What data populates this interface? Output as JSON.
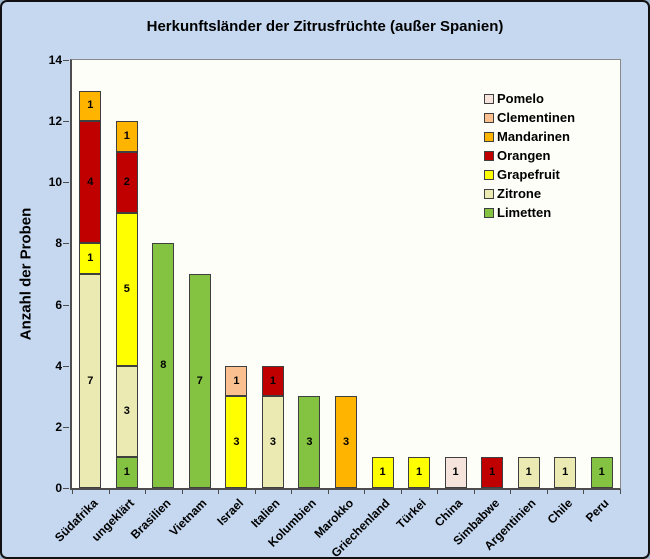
{
  "window": {
    "background_color": "#C5D8F0",
    "plot_background_color": "#FDFEF7",
    "border_color": "#111111"
  },
  "chart_data": {
    "type": "bar",
    "stacked": true,
    "title": "Herkunftsländer der Zitrusfrüchte (außer Spanien)",
    "ylabel": "Anzahl der Proben",
    "xlabel": "",
    "ylim": [
      0,
      14
    ],
    "ytick_step": 2,
    "grid": false,
    "legend_position": "upper-right-inside",
    "legend_order": "top-of-list = top-of-stack",
    "categories": [
      "Südafrika",
      "ungeklärt",
      "Brasilien",
      "Vietnam",
      "Israel",
      "Italien",
      "Kolumbien",
      "Marokko",
      "Griechenland",
      "Türkei",
      "China",
      "Simbabwe",
      "Argentinien",
      "Chile",
      "Peru"
    ],
    "series": [
      {
        "name": "Pomelo",
        "color": "#F6E3DB",
        "values": [
          0,
          0,
          0,
          0,
          0,
          0,
          0,
          0,
          0,
          0,
          1,
          0,
          0,
          0,
          0
        ]
      },
      {
        "name": "Clementinen",
        "color": "#FAC090",
        "values": [
          0,
          0,
          0,
          0,
          1,
          0,
          0,
          0,
          0,
          0,
          0,
          0,
          0,
          0,
          0
        ]
      },
      {
        "name": "Mandarinen",
        "color": "#FFB400",
        "values": [
          1,
          1,
          0,
          0,
          0,
          0,
          0,
          3,
          0,
          0,
          0,
          0,
          0,
          0,
          0
        ]
      },
      {
        "name": "Orangen",
        "color": "#C00000",
        "values": [
          4,
          2,
          0,
          0,
          0,
          1,
          0,
          0,
          0,
          0,
          0,
          1,
          0,
          0,
          0
        ]
      },
      {
        "name": "Grapefruit",
        "color": "#FFFF00",
        "values": [
          1,
          5,
          0,
          0,
          3,
          0,
          0,
          0,
          1,
          1,
          0,
          0,
          0,
          0,
          0
        ]
      },
      {
        "name": "Zitrone",
        "color": "#EAEAB2",
        "values": [
          7,
          3,
          0,
          0,
          0,
          3,
          0,
          0,
          0,
          0,
          0,
          0,
          1,
          1,
          0
        ]
      },
      {
        "name": "Limetten",
        "color": "#84C342",
        "values": [
          0,
          1,
          8,
          7,
          0,
          0,
          3,
          0,
          0,
          0,
          0,
          0,
          0,
          0,
          1
        ]
      }
    ],
    "bar_totals": [
      13,
      12,
      8,
      7,
      4,
      4,
      3,
      3,
      1,
      1,
      1,
      1,
      1,
      1,
      1
    ],
    "segment_labels_shown": true
  }
}
